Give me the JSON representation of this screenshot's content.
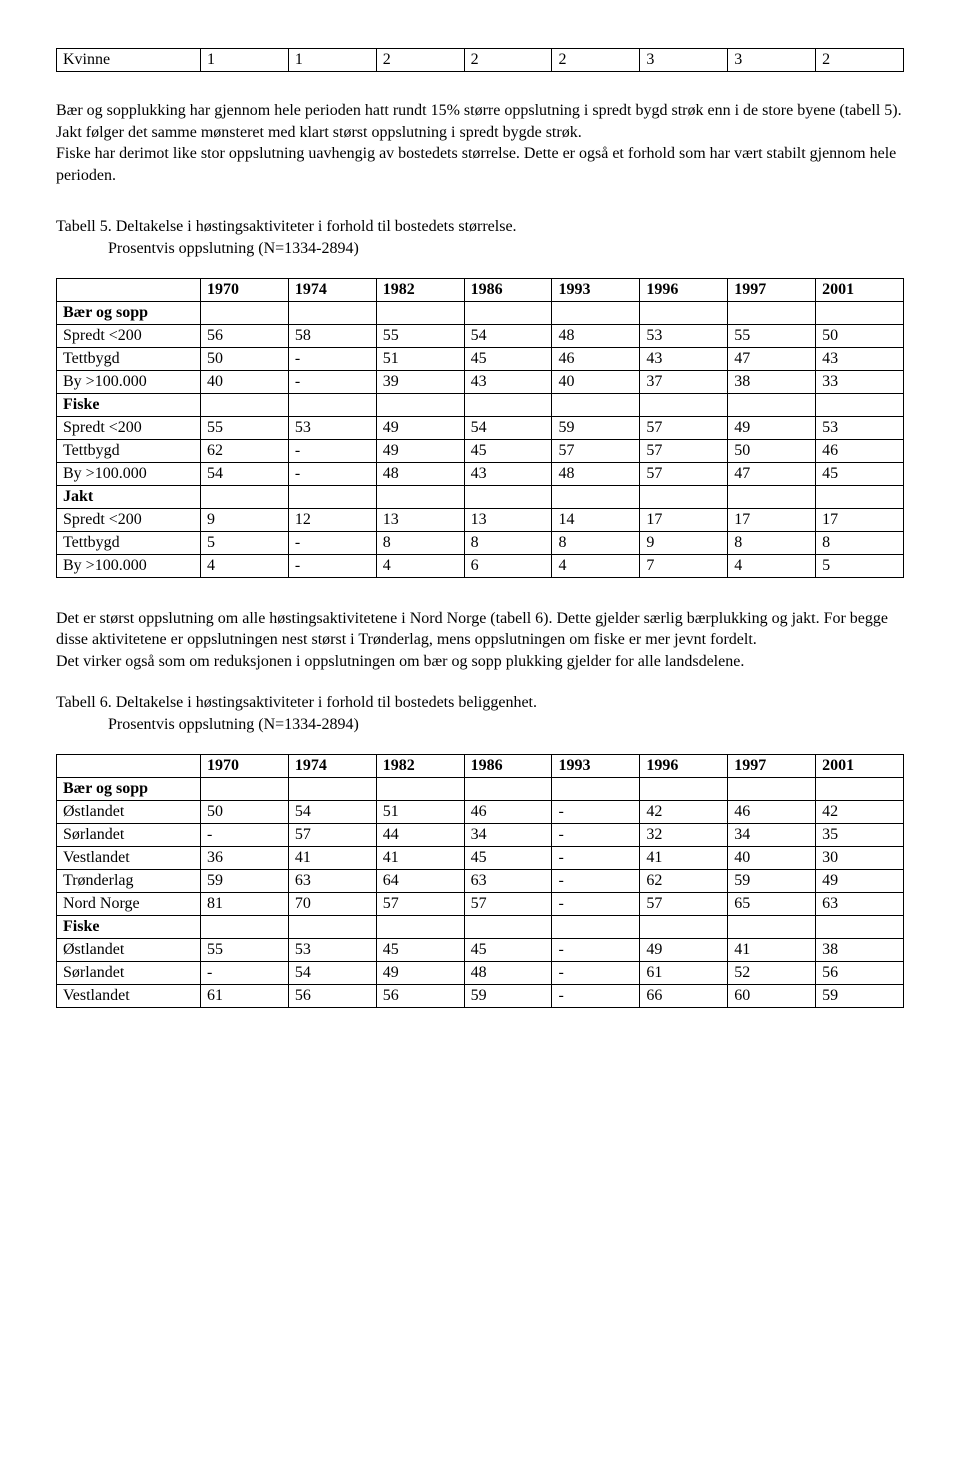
{
  "topTable": {
    "row": [
      "Kvinne",
      "1",
      "1",
      "2",
      "2",
      "2",
      "3",
      "3",
      "2"
    ]
  },
  "para1": [
    "Bær og sopplukking har gjennom hele perioden hatt rundt 15% større oppslutning i spredt bygd strøk enn i de store byene (tabell 5).",
    "Jakt følger det samme mønsteret med klart størst oppslutning i spredt bygde strøk.",
    "Fiske har derimot like stor oppslutning uavhengig av bostedets størrelse. Dette er også et forhold som har vært stabilt gjennom hele perioden."
  ],
  "table5": {
    "title": "Tabell 5. Deltakelse i høstingsaktiviteter i forhold til bostedets størrelse.",
    "subtitle": "Prosentvis oppslutning  (N=1334-2894)",
    "headers": [
      "",
      "1970",
      "1974",
      "1982",
      "1986",
      "1993",
      "1996",
      "1997",
      "2001"
    ],
    "rows": [
      {
        "label": "Bær og sopp",
        "cells": [
          "",
          "",
          "",
          "",
          "",
          "",
          "",
          ""
        ],
        "bold": true
      },
      {
        "label": "Spredt <200",
        "cells": [
          "56",
          "58",
          "55",
          "54",
          "48",
          "53",
          "55",
          "50"
        ]
      },
      {
        "label": "Tettbygd",
        "cells": [
          "50",
          "-",
          "51",
          "45",
          "46",
          "43",
          "47",
          "43"
        ]
      },
      {
        "label": "By >100.000",
        "cells": [
          "40",
          "-",
          "39",
          "43",
          "40",
          "37",
          "38",
          "33"
        ]
      },
      {
        "label": "Fiske",
        "cells": [
          "",
          "",
          "",
          "",
          "",
          "",
          "",
          ""
        ],
        "bold": true
      },
      {
        "label": "Spredt <200",
        "cells": [
          "55",
          "53",
          "49",
          "54",
          "59",
          "57",
          "49",
          "53"
        ]
      },
      {
        "label": "Tettbygd",
        "cells": [
          "62",
          "-",
          "49",
          "45",
          "57",
          "57",
          "50",
          "46"
        ]
      },
      {
        "label": "By >100.000",
        "cells": [
          "54",
          "-",
          "48",
          "43",
          "48",
          "57",
          "47",
          "45"
        ]
      },
      {
        "label": "Jakt",
        "cells": [
          "",
          "",
          "",
          "",
          "",
          "",
          "",
          ""
        ],
        "bold": true
      },
      {
        "label": "Spredt <200",
        "cells": [
          "9",
          "12",
          "13",
          "13",
          "14",
          "17",
          "17",
          "17"
        ]
      },
      {
        "label": "Tettbygd",
        "cells": [
          "5",
          "-",
          "8",
          "8",
          "8",
          "9",
          "8",
          "8"
        ]
      },
      {
        "label": "By >100.000",
        "cells": [
          "4",
          "-",
          "4",
          "6",
          "4",
          "7",
          "4",
          "5"
        ]
      }
    ]
  },
  "para2": [
    "Det er størst oppslutning om alle høstingsaktivitetene i Nord Norge (tabell 6). Dette gjelder særlig bærplukking og jakt. For begge disse aktivitetene er oppslutningen nest størst i Trønderlag, mens oppslutningen om fiske er mer jevnt fordelt.",
    "Det virker også som om reduksjonen i oppslutningen om bær og sopp plukking gjelder for alle landsdelene."
  ],
  "table6": {
    "title": "Tabell 6. Deltakelse i høstingsaktiviteter i forhold til bostedets beliggenhet.",
    "subtitle": "Prosentvis oppslutning  (N=1334-2894)",
    "headers": [
      "",
      "1970",
      "1974",
      "1982",
      "1986",
      "1993",
      "1996",
      "1997",
      "2001"
    ],
    "rows": [
      {
        "label": "Bær og sopp",
        "cells": [
          "",
          "",
          "",
          "",
          "",
          "",
          "",
          ""
        ],
        "bold": true
      },
      {
        "label": "Østlandet",
        "cells": [
          "50",
          "54",
          "51",
          "46",
          "-",
          "42",
          "46",
          "42"
        ]
      },
      {
        "label": "Sørlandet",
        "cells": [
          "-",
          "57",
          "44",
          "34",
          "-",
          "32",
          "34",
          "35"
        ]
      },
      {
        "label": "Vestlandet",
        "cells": [
          "36",
          "41",
          "41",
          "45",
          "-",
          "41",
          "40",
          "30"
        ]
      },
      {
        "label": "Trønderlag",
        "cells": [
          "59",
          "63",
          "64",
          "63",
          "-",
          "62",
          "59",
          "49"
        ]
      },
      {
        "label": "Nord Norge",
        "cells": [
          "81",
          "70",
          "57",
          "57",
          "-",
          "57",
          "65",
          "63"
        ]
      },
      {
        "label": "Fiske",
        "cells": [
          "",
          "",
          "",
          "",
          "",
          "",
          "",
          ""
        ],
        "bold": true
      },
      {
        "label": "Østlandet",
        "cells": [
          "55",
          "53",
          "45",
          "45",
          "-",
          "49",
          "41",
          "38"
        ]
      },
      {
        "label": "Sørlandet",
        "cells": [
          "-",
          "54",
          "49",
          "48",
          "-",
          "61",
          "52",
          "56"
        ]
      },
      {
        "label": "Vestlandet",
        "cells": [
          "61",
          "56",
          "56",
          "59",
          "-",
          "66",
          "60",
          "59"
        ]
      }
    ]
  },
  "colWidths": [
    "17%",
    "10.375%",
    "10.375%",
    "10.375%",
    "10.375%",
    "10.375%",
    "10.375%",
    "10.375%",
    "10.375%"
  ]
}
